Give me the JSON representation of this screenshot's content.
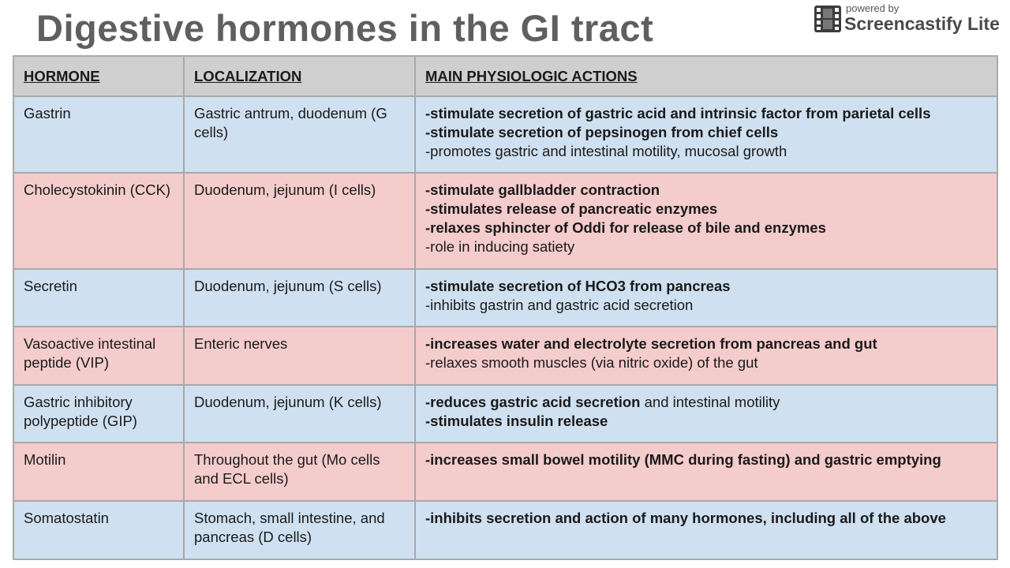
{
  "title": "Digestive hormones in the GI tract",
  "watermark": {
    "small": "powered by",
    "name": "Screencastify Lite",
    "icon": "film-strip-icon"
  },
  "colors": {
    "header": "#cfcfcf",
    "blue_row": "#cfe0f1",
    "pink_row": "#f4cccc",
    "title": "#5f5f5f"
  },
  "table": {
    "headers": [
      "HORMONE",
      "LOCALIZATION",
      "MAIN PHYSIOLOGIC ACTIONS"
    ],
    "rows": [
      {
        "hormone": "Gastrin",
        "localization": "Gastric antrum, duodenum (G cells)",
        "actions": [
          {
            "bold": "-stimulate secretion of gastric acid and intrinsic factor from parietal cells",
            "normal": ""
          },
          {
            "bold": "-stimulate secretion of pepsinogen from chief cells",
            "normal": ""
          },
          {
            "bold": "",
            "normal": "-promotes gastric and intestinal motility, mucosal growth"
          }
        ]
      },
      {
        "hormone": "Cholecystokinin (CCK)",
        "localization": "Duodenum, jejunum (I cells)",
        "actions": [
          {
            "bold": "-stimulate gallbladder contraction",
            "normal": ""
          },
          {
            "bold": "-stimulates release of pancreatic enzymes",
            "normal": ""
          },
          {
            "bold": "-relaxes sphincter of Oddi for release of bile and enzymes",
            "normal": ""
          },
          {
            "bold": "",
            "normal": "-role in inducing satiety"
          }
        ]
      },
      {
        "hormone": "Secretin",
        "localization": "Duodenum, jejunum (S cells)",
        "actions": [
          {
            "bold": "-stimulate secretion of HCO3 from pancreas",
            "normal": ""
          },
          {
            "bold": "",
            "normal": "-inhibits gastrin and gastric acid secretion"
          }
        ]
      },
      {
        "hormone": "Vasoactive intestinal peptide (VIP)",
        "localization": "Enteric nerves",
        "actions": [
          {
            "bold": "-increases water and electrolyte secretion from pancreas and gut",
            "normal": ""
          },
          {
            "bold": "",
            "normal": "-relaxes smooth muscles (via nitric oxide) of the gut"
          }
        ]
      },
      {
        "hormone": "Gastric inhibitory polypeptide (GIP)",
        "localization": "Duodenum, jejunum (K cells)",
        "actions": [
          {
            "bold": "-reduces gastric acid secretion",
            "normal": " and intestinal motility"
          },
          {
            "bold": "-stimulates insulin release",
            "normal": ""
          }
        ]
      },
      {
        "hormone": "Motilin",
        "localization": "Throughout the gut (Mo cells and ECL cells)",
        "actions": [
          {
            "bold": "-increases small bowel motility (MMC during fasting) and gastric emptying",
            "normal": ""
          }
        ]
      },
      {
        "hormone": "Somatostatin",
        "localization": "Stomach, small intestine, and pancreas (D cells)",
        "actions": [
          {
            "bold": "-inhibits secretion and action of many hormones, including all of the above",
            "normal": ""
          }
        ]
      }
    ]
  }
}
